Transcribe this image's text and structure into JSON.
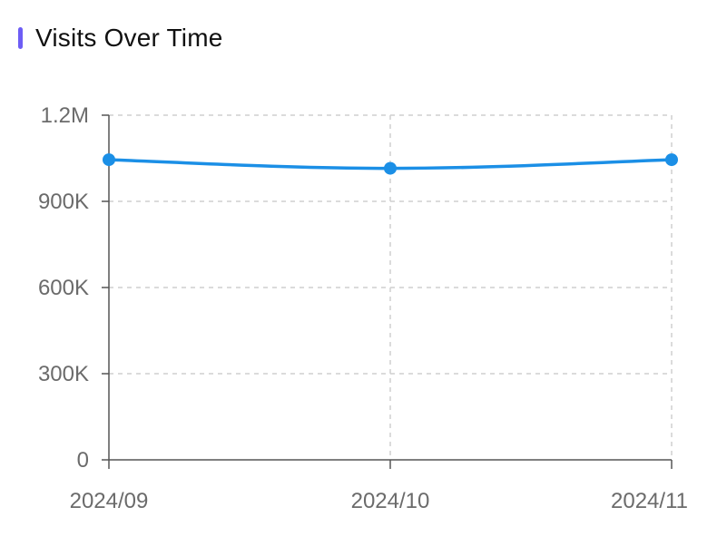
{
  "header": {
    "title": "Visits Over Time",
    "accent_color": "#6d5df5"
  },
  "chart_data": {
    "type": "line",
    "title": "Visits Over Time",
    "xlabel": "",
    "ylabel": "",
    "categories": [
      "2024/09",
      "2024/10",
      "2024/11"
    ],
    "series": [
      {
        "values": [
          1045000,
          1015000,
          1045000
        ],
        "color": "#1b8fe6"
      }
    ],
    "ylim": [
      0,
      1200000
    ],
    "yticks": [
      0,
      300000,
      600000,
      900000,
      1200000
    ],
    "ytick_labels": [
      "0",
      "300K",
      "600K",
      "900K",
      "1.2M"
    ],
    "grid": true,
    "legend": "none"
  }
}
